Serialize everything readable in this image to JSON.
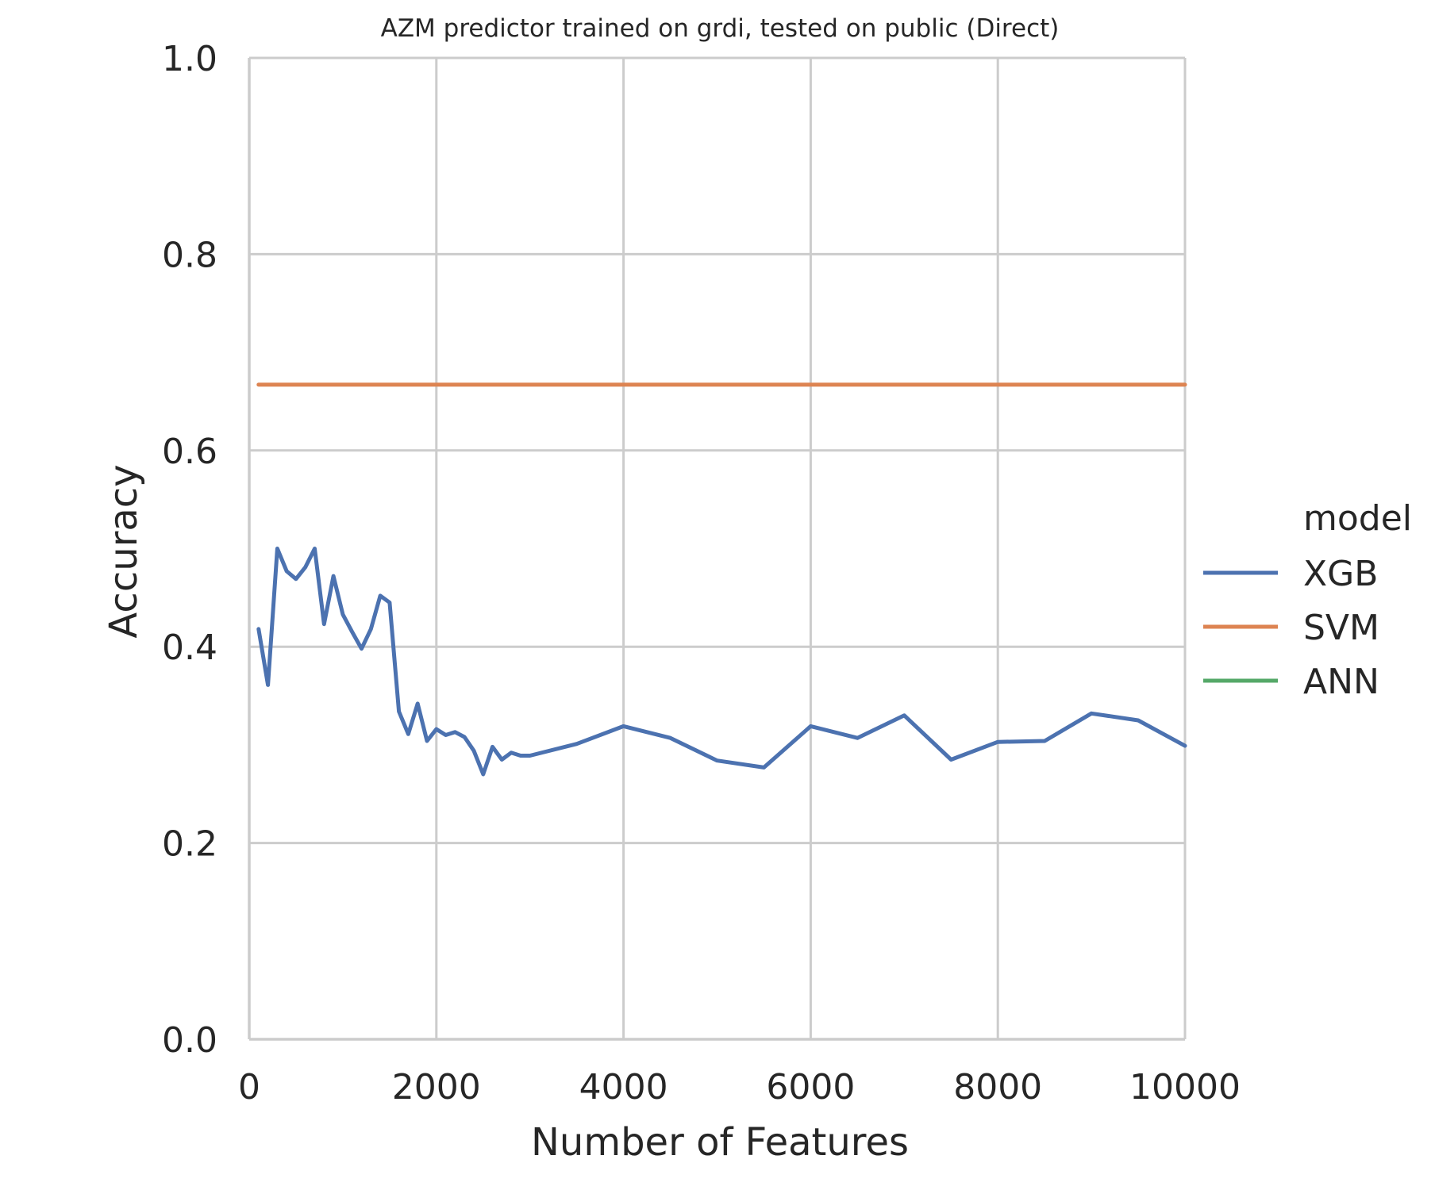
{
  "chart_data": {
    "type": "line",
    "title": "AZM predictor trained on grdi, tested on public (Direct)",
    "xlabel": "Number of Features",
    "ylabel": "Accuracy",
    "xlim": [
      0,
      10000
    ],
    "ylim": [
      0.0,
      1.0
    ],
    "x_ticks": [
      "0",
      "2000",
      "4000",
      "6000",
      "8000",
      "10000"
    ],
    "x_tick_values": [
      0,
      2000,
      4000,
      6000,
      8000,
      10000
    ],
    "y_ticks": [
      "0.0",
      "0.2",
      "0.4",
      "0.6",
      "0.8",
      "1.0"
    ],
    "y_tick_values": [
      0.0,
      0.2,
      0.4,
      0.6,
      0.8,
      1.0
    ],
    "grid": true,
    "legend": {
      "title": "model",
      "placement": "right",
      "entries": [
        "XGB",
        "SVM",
        "ANN"
      ]
    },
    "series": [
      {
        "name": "XGB",
        "color": "#4c72b0",
        "x": [
          100,
          200,
          300,
          400,
          500,
          600,
          700,
          800,
          900,
          1000,
          1100,
          1200,
          1300,
          1400,
          1500,
          1600,
          1700,
          1800,
          1900,
          2000,
          2100,
          2200,
          2300,
          2400,
          2500,
          2600,
          2700,
          2800,
          2900,
          3000,
          3500,
          4000,
          4500,
          5000,
          5500,
          6000,
          6500,
          7000,
          7500,
          8000,
          8500,
          9000,
          9500,
          10000
        ],
        "values": [
          0.418,
          0.361,
          0.5,
          0.477,
          0.469,
          0.481,
          0.5,
          0.423,
          0.472,
          0.433,
          0.415,
          0.398,
          0.418,
          0.452,
          0.445,
          0.334,
          0.311,
          0.342,
          0.304,
          0.316,
          0.31,
          0.313,
          0.308,
          0.294,
          0.27,
          0.298,
          0.285,
          0.292,
          0.289,
          0.289,
          0.301,
          0.319,
          0.307,
          0.284,
          0.277,
          0.319,
          0.307,
          0.33,
          0.285,
          0.303,
          0.304,
          0.332,
          0.325,
          0.299
        ]
      },
      {
        "name": "SVM",
        "color": "#dd8452",
        "x": [
          100,
          10000
        ],
        "values": [
          0.667,
          0.667
        ]
      },
      {
        "name": "ANN",
        "color": "#55a868",
        "x": [],
        "values": []
      }
    ]
  }
}
